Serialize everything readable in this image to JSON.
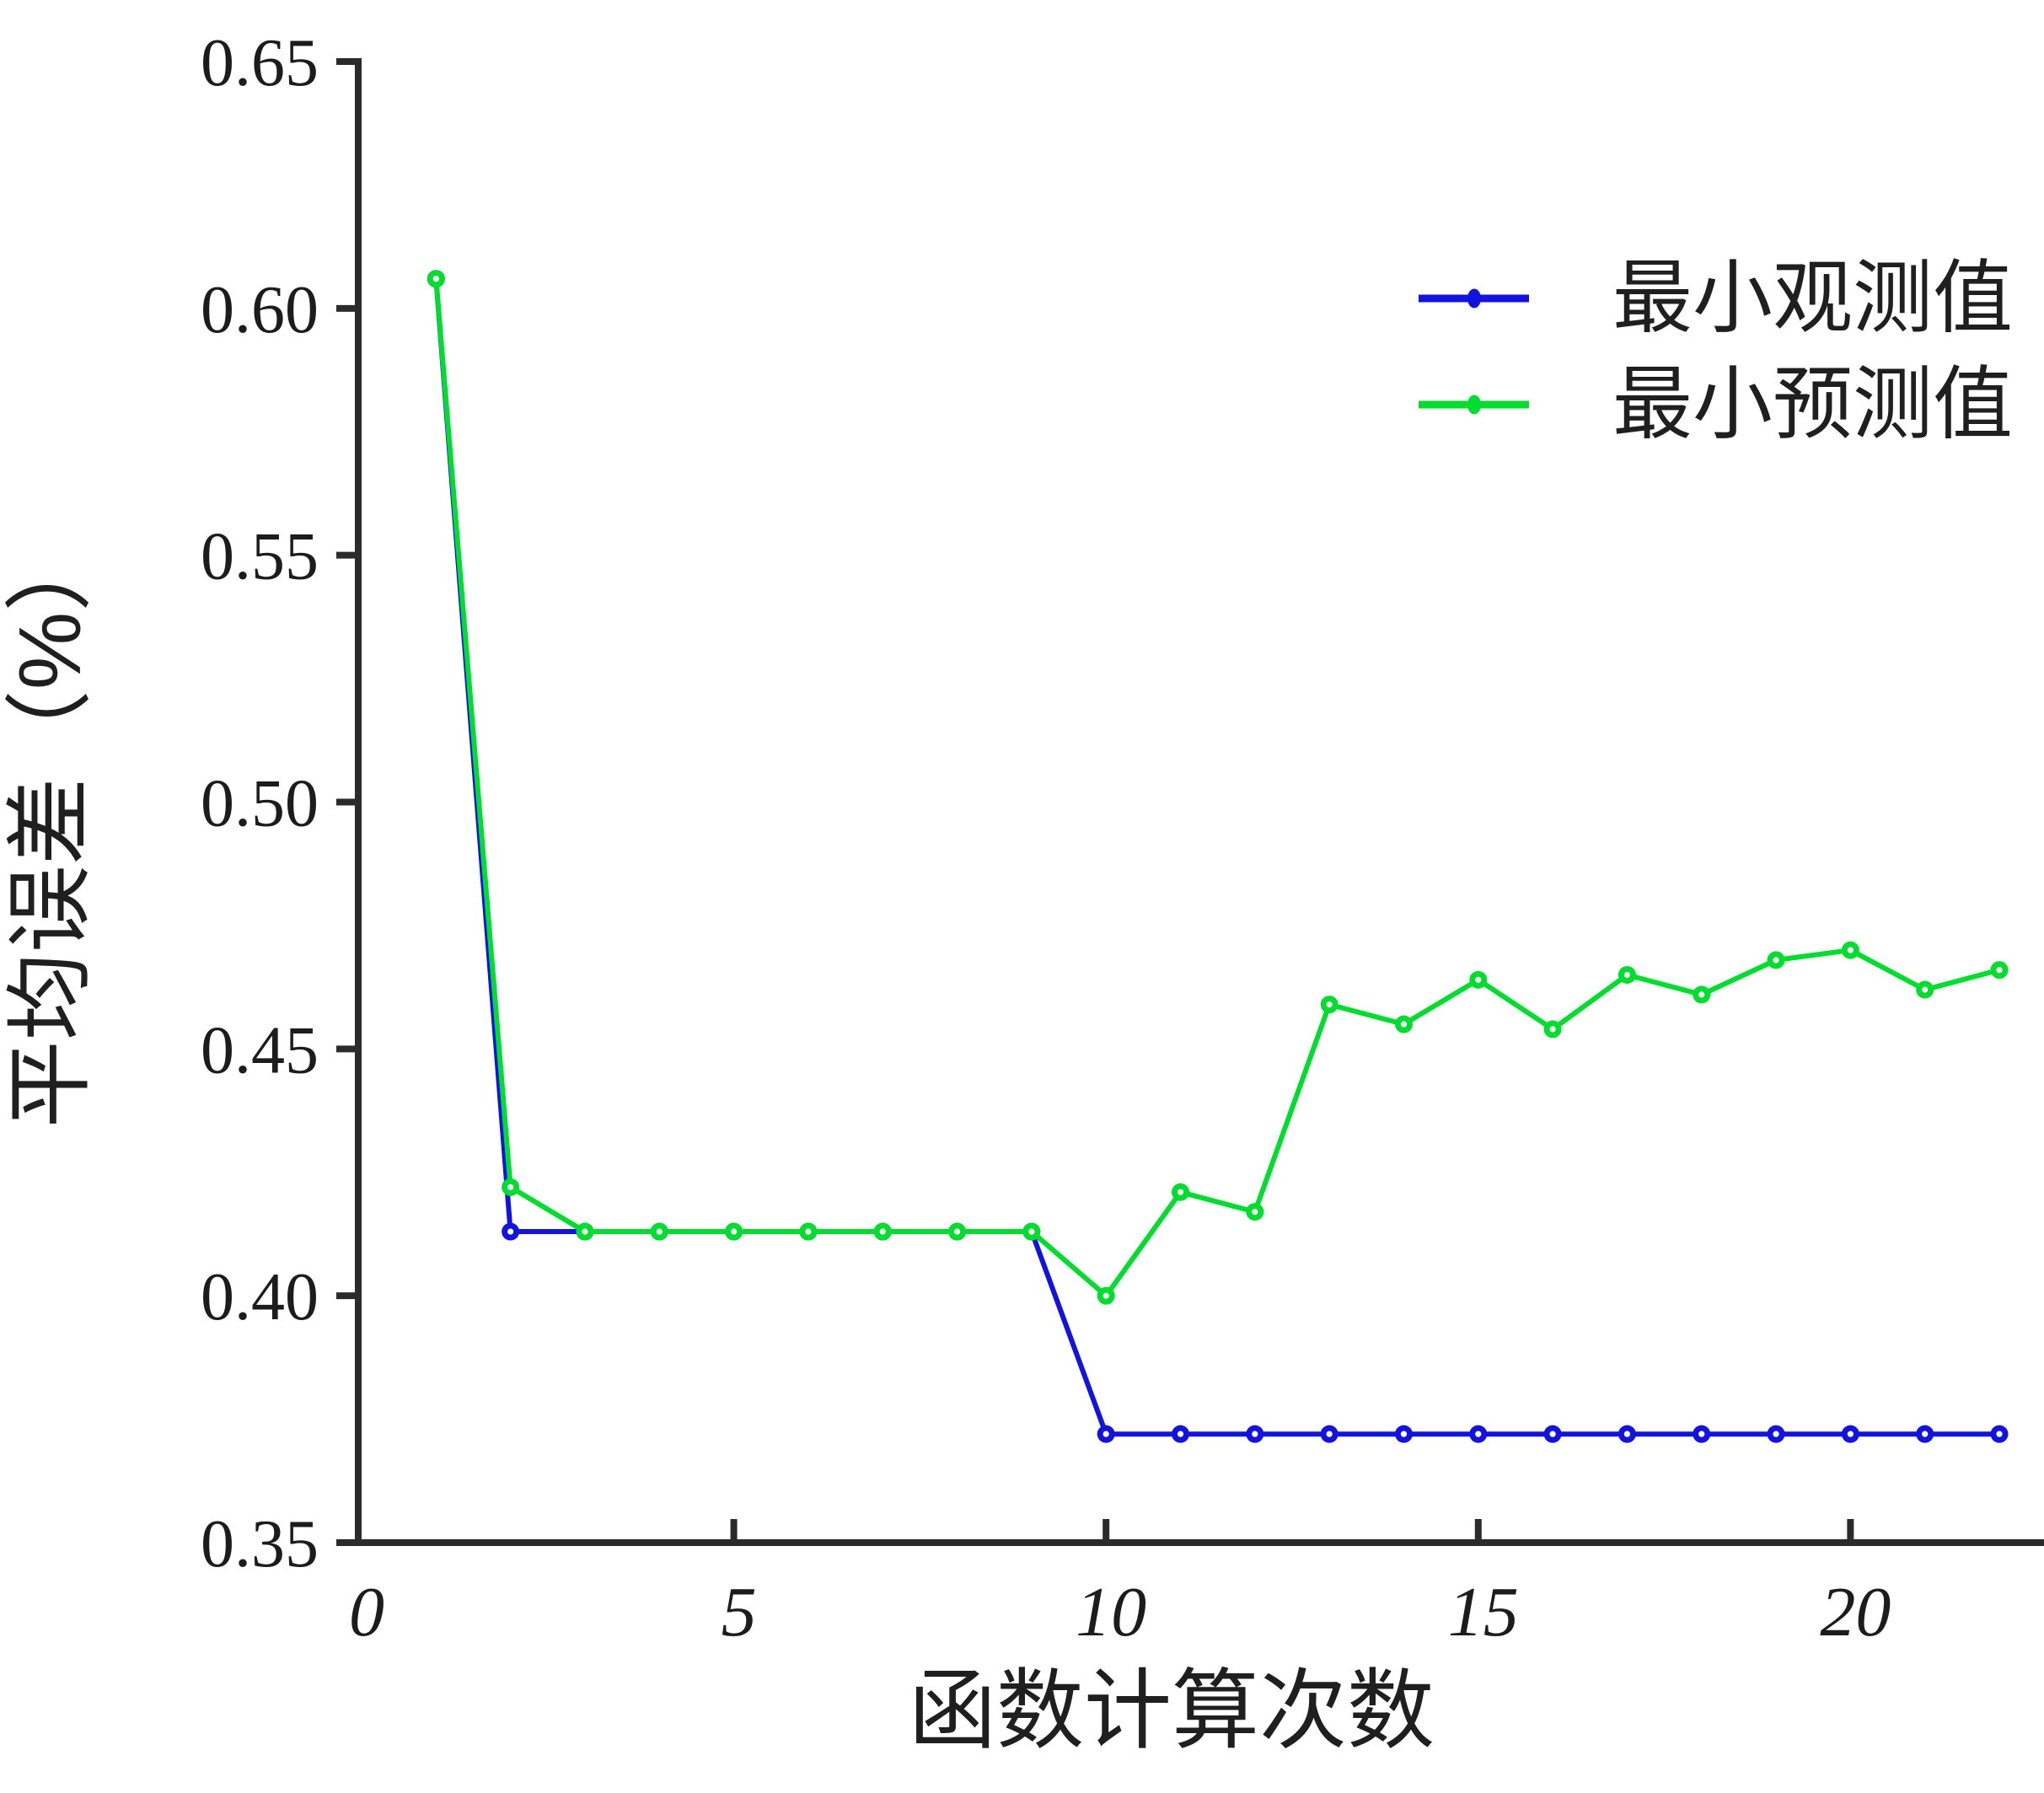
{
  "chart_data": {
    "type": "line",
    "title": "",
    "xlabel": "函数计算次数",
    "ylabel": "平均误差（%）",
    "x": [
      1,
      2,
      3,
      4,
      5,
      6,
      7,
      8,
      9,
      10,
      11,
      12,
      13,
      14,
      15,
      16,
      17,
      18,
      19,
      20,
      21,
      22
    ],
    "series": [
      {
        "name": "最小观测值",
        "color": "#1313e0",
        "values": [
          0.606,
          0.413,
          0.413,
          0.413,
          0.413,
          0.413,
          0.413,
          0.413,
          0.413,
          0.372,
          0.372,
          0.372,
          0.372,
          0.372,
          0.372,
          0.372,
          0.372,
          0.372,
          0.372,
          0.372,
          0.372,
          0.372
        ]
      },
      {
        "name": "最小预测值",
        "color": "#00dd2e",
        "values": [
          0.606,
          0.422,
          0.413,
          0.413,
          0.413,
          0.413,
          0.413,
          0.413,
          0.413,
          0.4,
          0.421,
          0.417,
          0.459,
          0.455,
          0.464,
          0.454,
          0.465,
          0.461,
          0.468,
          0.47,
          0.462,
          0.466
        ]
      }
    ],
    "xticks": [
      "0",
      "5",
      "10",
      "15",
      "20"
    ],
    "yticks": [
      "0.35",
      "0.40",
      "0.45",
      "0.50",
      "0.55",
      "0.60",
      "0.65"
    ],
    "xlim": [
      0,
      22.6
    ],
    "ylim": [
      0.35,
      0.65
    ],
    "grid": false,
    "legend_position": "upper right",
    "marker": "open-circle"
  }
}
